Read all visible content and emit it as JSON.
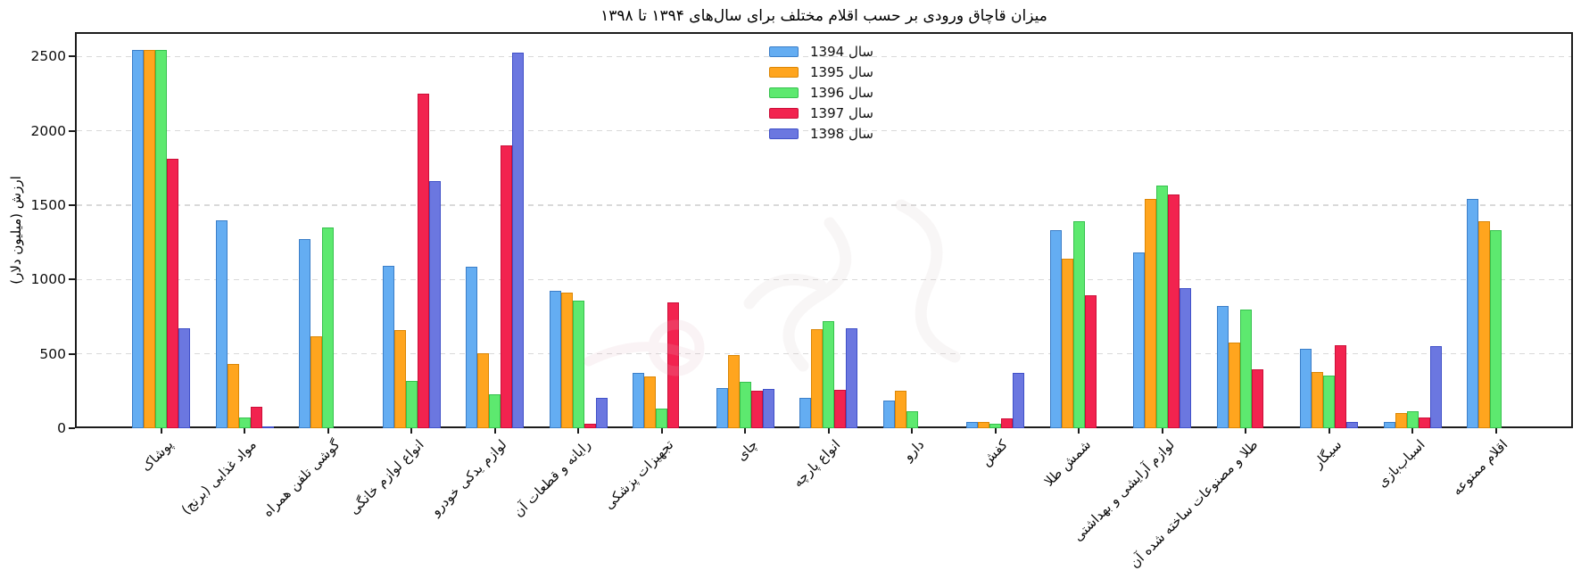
{
  "chart_data": {
    "type": "bar",
    "title": "میزان قاچاق ورودی بر حسب اقلام مختلف برای سال‌های ۱۳۹۴ تا ۱۳۹۸",
    "ylabel": "ارزش (میلیون دلار)",
    "xlabel": "",
    "unit": "میلیون دلار",
    "ylim": [
      0,
      2660
    ],
    "y_ticks": [
      0,
      500,
      1000,
      1500,
      2000,
      2500
    ],
    "grid": "horizontal-dashed",
    "legend_position": "upper center",
    "categories": [
      "پوشاک",
      "مواد غذایی (برنج)",
      "گوشی تلفن همراه",
      "انواع لوازم خانگی",
      "لوازم یدکی خودرو",
      "رایانه و قطعات آن",
      "تجهیزات پزشکی",
      "چای",
      "انواع پارچه",
      "دارو",
      "کفش",
      "شمش طلا",
      "لوازم آرایشی و بهداشتی",
      "طلا و مصنوعات ساخته شده آن",
      "سیگار",
      "اسباب‌بازی",
      "اقلام ممنوعه"
    ],
    "series": [
      {
        "name": "سال 1394",
        "color": "#64ADF2",
        "edge": "#3B7EC8",
        "values": [
          2545,
          1400,
          1270,
          1090,
          1085,
          925,
          370,
          270,
          205,
          185,
          40,
          1335,
          1185,
          825,
          535,
          45,
          1540
        ]
      },
      {
        "name": "سال 1395",
        "color": "#FFA51E",
        "edge": "#DB8604",
        "values": [
          2545,
          435,
          620,
          660,
          505,
          910,
          350,
          490,
          665,
          250,
          45,
          1140,
          1540,
          575,
          380,
          105,
          1395
        ]
      },
      {
        "name": "سال 1396",
        "color": "#5DE96F",
        "edge": "#36C14E",
        "values": [
          2545,
          70,
          1350,
          320,
          230,
          860,
          135,
          310,
          720,
          115,
          30,
          1395,
          1630,
          800,
          355,
          115,
          1335
        ]
      },
      {
        "name": "سال 1397",
        "color": "#F2234F",
        "edge": "#CC0E38",
        "values": [
          1815,
          145,
          0,
          2250,
          1905,
          30,
          845,
          255,
          260,
          0,
          65,
          895,
          1575,
          395,
          560,
          70,
          0
        ]
      },
      {
        "name": "سال 1398",
        "color": "#6B77E0",
        "edge": "#4050C8",
        "values": [
          670,
          15,
          0,
          1660,
          2525,
          205,
          0,
          265,
          675,
          0,
          375,
          0,
          945,
          0,
          45,
          550,
          0
        ]
      }
    ]
  }
}
